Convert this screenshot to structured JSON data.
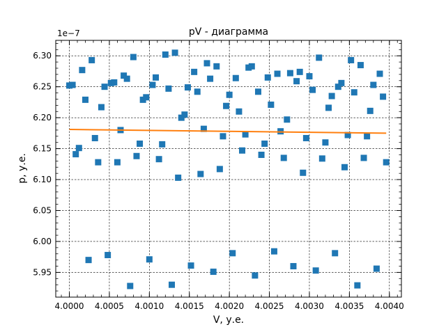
{
  "chart_data": {
    "type": "scatter",
    "title": "pV - диаграмма",
    "xlabel": "V, у.е.",
    "ylabel": "p, у.е.",
    "y_offset_label": "1e−7",
    "xlim": [
      3.99983,
      4.00415
    ],
    "ylim": [
      5.91e-07,
      6.325e-07
    ],
    "x_ticks": [
      4.0,
      4.0005,
      4.001,
      4.0015,
      4.002,
      4.0025,
      4.003,
      4.0035,
      4.004
    ],
    "x_tick_labels": [
      "4.0000",
      "4.0005",
      "4.0010",
      "4.0015",
      "4.0020",
      "4.0025",
      "4.0030",
      "4.0035",
      "4.0040"
    ],
    "y_ticks": [
      5.95e-07,
      6e-07,
      6.05e-07,
      6.1e-07,
      6.15e-07,
      6.2e-07,
      6.25e-07,
      6.3e-07
    ],
    "y_tick_labels": [
      "5.95",
      "6.00",
      "6.05",
      "6.10",
      "6.15",
      "6.20",
      "6.25",
      "6.30"
    ],
    "grid": true,
    "grid_style": "dashed",
    "colors": {
      "scatter": "#1f77b4",
      "fit": "#ff7f0e"
    },
    "series": [
      {
        "kind": "scatter",
        "marker": "square",
        "points": [
          [
            4.0,
            6.252e-07
          ],
          [
            4.00004,
            6.253e-07
          ],
          [
            4.00008,
            6.141e-07
          ],
          [
            4.00012,
            6.151e-07
          ],
          [
            4.00016,
            6.277e-07
          ],
          [
            4.0002,
            6.229e-07
          ],
          [
            4.00024,
            5.97e-07
          ],
          [
            4.00028,
            6.293e-07
          ],
          [
            4.00032,
            6.167e-07
          ],
          [
            4.00036,
            6.128e-07
          ],
          [
            4.0004,
            6.217e-07
          ],
          [
            4.00044,
            6.25e-07
          ],
          [
            4.00048,
            5.978e-07
          ],
          [
            4.00052,
            6.256e-07
          ],
          [
            4.00056,
            6.257e-07
          ],
          [
            4.0006,
            6.128e-07
          ],
          [
            4.00064,
            6.18e-07
          ],
          [
            4.00068,
            6.268e-07
          ],
          [
            4.00072,
            6.263e-07
          ],
          [
            4.00076,
            5.928e-07
          ],
          [
            4.0008,
            6.298e-07
          ],
          [
            4.00084,
            6.138e-07
          ],
          [
            4.00088,
            6.158e-07
          ],
          [
            4.00092,
            6.229e-07
          ],
          [
            4.00096,
            6.233e-07
          ],
          [
            4.001,
            5.971e-07
          ],
          [
            4.00104,
            6.253e-07
          ],
          [
            4.00108,
            6.265e-07
          ],
          [
            4.00112,
            6.133e-07
          ],
          [
            4.00116,
            6.157e-07
          ],
          [
            4.0012,
            6.302e-07
          ],
          [
            4.00124,
            6.247e-07
          ],
          [
            4.00128,
            5.93e-07
          ],
          [
            4.00132,
            6.305e-07
          ],
          [
            4.00136,
            6.103e-07
          ],
          [
            4.0014,
            6.2e-07
          ],
          [
            4.00144,
            6.205e-07
          ],
          [
            4.00148,
            6.249e-07
          ],
          [
            4.00152,
            5.961e-07
          ],
          [
            4.00156,
            6.274e-07
          ],
          [
            4.0016,
            6.242e-07
          ],
          [
            4.00164,
            6.109e-07
          ],
          [
            4.00168,
            6.182e-07
          ],
          [
            4.00172,
            6.288e-07
          ],
          [
            4.00176,
            6.263e-07
          ],
          [
            4.0018,
            5.951e-07
          ],
          [
            4.00184,
            6.283e-07
          ],
          [
            4.00188,
            6.117e-07
          ],
          [
            4.00192,
            6.17e-07
          ],
          [
            4.00196,
            6.219e-07
          ],
          [
            4.002,
            6.237e-07
          ],
          [
            4.00204,
            5.981e-07
          ],
          [
            4.00208,
            6.264e-07
          ],
          [
            4.00212,
            6.21e-07
          ],
          [
            4.00216,
            6.147e-07
          ],
          [
            4.0022,
            6.173e-07
          ],
          [
            4.00224,
            6.281e-07
          ],
          [
            4.00228,
            6.283e-07
          ],
          [
            4.00232,
            5.945e-07
          ],
          [
            4.00236,
            6.242e-07
          ],
          [
            4.0024,
            6.14e-07
          ],
          [
            4.00244,
            6.158e-07
          ],
          [
            4.00248,
            6.265e-07
          ],
          [
            4.00252,
            6.221e-07
          ],
          [
            4.00256,
            5.984e-07
          ],
          [
            4.0026,
            6.271e-07
          ],
          [
            4.00264,
            6.178e-07
          ],
          [
            4.00268,
            6.135e-07
          ],
          [
            4.00272,
            6.197e-07
          ],
          [
            4.00276,
            6.272e-07
          ],
          [
            4.0028,
            5.96e-07
          ],
          [
            4.00284,
            6.259e-07
          ],
          [
            4.00288,
            6.274e-07
          ],
          [
            4.00292,
            6.111e-07
          ],
          [
            4.00296,
            6.167e-07
          ],
          [
            4.003,
            6.267e-07
          ],
          [
            4.00304,
            6.245e-07
          ],
          [
            4.00308,
            5.953e-07
          ],
          [
            4.00312,
            6.297e-07
          ],
          [
            4.00316,
            6.134e-07
          ],
          [
            4.0032,
            6.16e-07
          ],
          [
            4.00324,
            6.216e-07
          ],
          [
            4.00328,
            6.235e-07
          ],
          [
            4.00332,
            5.981e-07
          ],
          [
            4.00336,
            6.25e-07
          ],
          [
            4.0034,
            6.256e-07
          ],
          [
            4.00344,
            6.12e-07
          ],
          [
            4.00348,
            6.172e-07
          ],
          [
            4.00352,
            6.293e-07
          ],
          [
            4.00356,
            6.241e-07
          ],
          [
            4.0036,
            5.929e-07
          ],
          [
            4.00364,
            6.285e-07
          ],
          [
            4.00368,
            6.135e-07
          ],
          [
            4.00372,
            6.17e-07
          ],
          [
            4.00376,
            6.211e-07
          ],
          [
            4.0038,
            6.253e-07
          ],
          [
            4.00384,
            5.956e-07
          ],
          [
            4.00388,
            6.271e-07
          ],
          [
            4.00392,
            6.234e-07
          ],
          [
            4.00396,
            6.128e-07
          ]
        ]
      },
      {
        "kind": "line",
        "points": [
          [
            4.0,
            6.181e-07
          ],
          [
            4.00396,
            6.175e-07
          ]
        ]
      }
    ]
  }
}
